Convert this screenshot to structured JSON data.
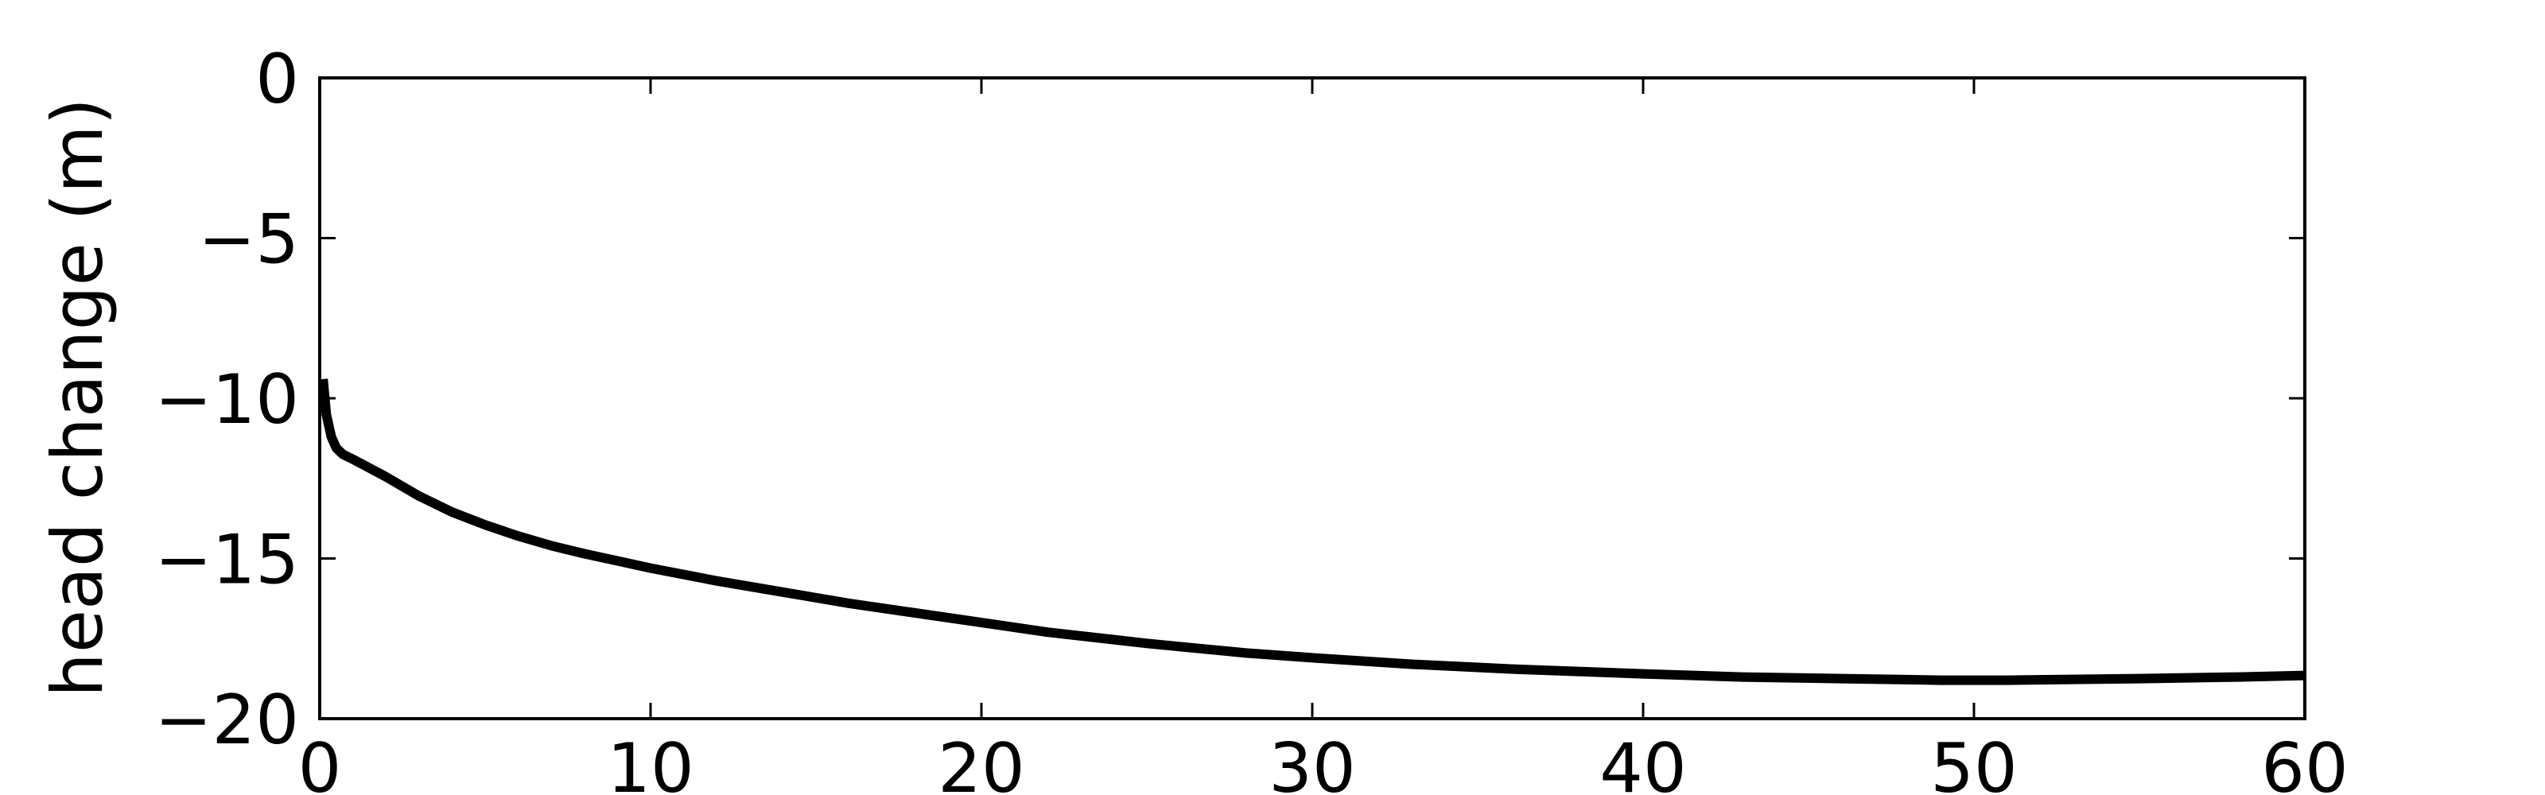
{
  "chart_data": {
    "type": "line",
    "title": "",
    "xlabel": "",
    "ylabel": "head change (m)",
    "xlim": [
      0,
      60
    ],
    "ylim": [
      -20,
      0
    ],
    "xticks": [
      0,
      10,
      20,
      30,
      40,
      50,
      60
    ],
    "yticks": [
      0,
      -5,
      -10,
      -15,
      -20
    ],
    "xtick_labels": [
      "0",
      "10",
      "20",
      "30",
      "40",
      "50",
      "60"
    ],
    "ytick_labels": [
      "0",
      "−5",
      "−10",
      "−15",
      "−20"
    ],
    "grid": false,
    "series": [
      {
        "color": "#000000",
        "x": [
          0.1,
          0.2,
          0.35,
          0.5,
          0.7,
          1,
          2,
          3,
          4,
          5,
          6,
          7,
          8,
          10,
          12,
          14,
          16,
          18,
          20,
          22,
          25,
          28,
          30,
          33,
          36,
          40,
          43,
          46,
          49,
          51,
          55,
          58,
          60
        ],
        "y": [
          -9.4,
          -10.5,
          -11.2,
          -11.55,
          -11.75,
          -11.9,
          -12.45,
          -13.05,
          -13.55,
          -13.95,
          -14.3,
          -14.6,
          -14.85,
          -15.3,
          -15.7,
          -16.05,
          -16.4,
          -16.7,
          -17.0,
          -17.3,
          -17.65,
          -17.95,
          -18.1,
          -18.3,
          -18.45,
          -18.6,
          -18.7,
          -18.75,
          -18.8,
          -18.8,
          -18.75,
          -18.7,
          -18.65
        ]
      }
    ]
  }
}
